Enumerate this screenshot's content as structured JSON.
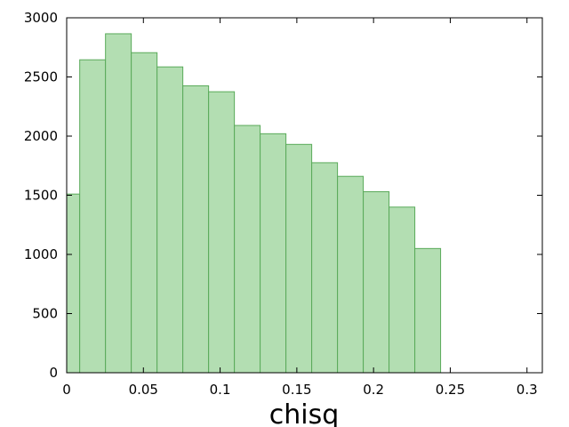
{
  "chart_data": {
    "type": "bar",
    "title": "",
    "xlabel": "chisq",
    "ylabel": "",
    "xlim": [
      0,
      0.31
    ],
    "ylim": [
      0,
      3000
    ],
    "grid": false,
    "bin_edges": [
      0,
      0.0085,
      0.0253,
      0.0421,
      0.0589,
      0.0757,
      0.0925,
      0.1093,
      0.1261,
      0.1429,
      0.1597,
      0.1765,
      0.1933,
      0.2101,
      0.2269,
      0.2437
    ],
    "values": [
      1510,
      2645,
      2865,
      2705,
      2585,
      2425,
      2375,
      2090,
      2020,
      1930,
      1775,
      1660,
      1530,
      1400,
      1050
    ],
    "x_ticks": [
      0,
      0.05,
      0.1,
      0.15,
      0.2,
      0.25,
      0.3
    ],
    "x_tick_labels": [
      "0",
      "0.05",
      "0.1",
      "0.15",
      "0.2",
      "0.25",
      "0.3"
    ],
    "y_ticks": [
      0,
      500,
      1000,
      1500,
      2000,
      2500,
      3000
    ],
    "y_tick_labels": [
      "0",
      "500",
      "1000",
      "1500",
      "2000",
      "2500",
      "3000"
    ],
    "colors": {
      "bar_fill": "#b3deb2",
      "bar_edge": "#5aaa5a"
    }
  }
}
